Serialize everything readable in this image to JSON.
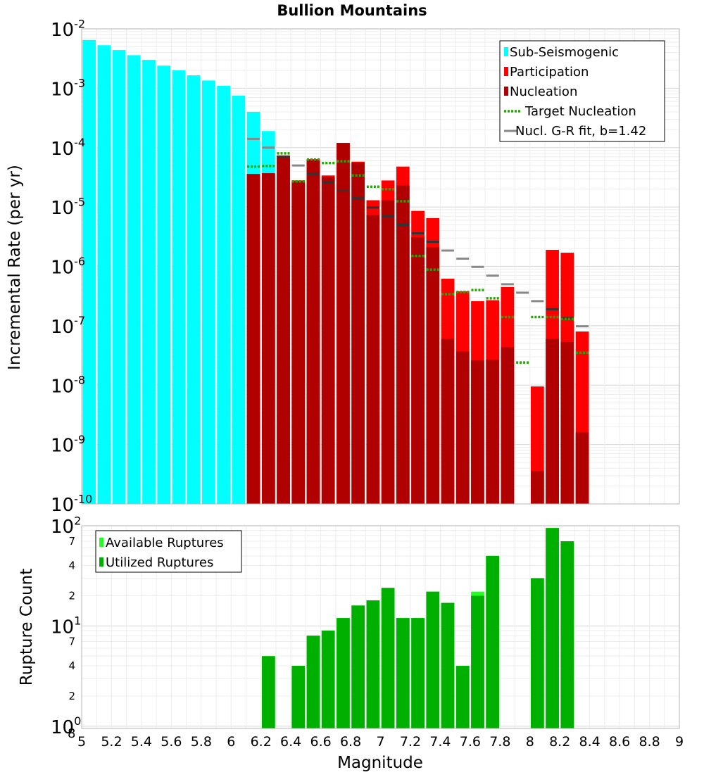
{
  "chart_data": [
    {
      "type": "bar",
      "title": "Bullion Mountains",
      "xlabel": "",
      "ylabel": "Incremental Rate (per yr)",
      "yscale": "log",
      "xlim": [
        5,
        9
      ],
      "ylim": [
        1e-10,
        0.01
      ],
      "y_tick_labels": [
        {
          "base": "10",
          "exp": "-10"
        },
        {
          "base": "10",
          "exp": "-9"
        },
        {
          "base": "10",
          "exp": "-8"
        },
        {
          "base": "10",
          "exp": "-7"
        },
        {
          "base": "10",
          "exp": "-6"
        },
        {
          "base": "10",
          "exp": "-5"
        },
        {
          "base": "10",
          "exp": "-4"
        },
        {
          "base": "10",
          "exp": "-3"
        },
        {
          "base": "10",
          "exp": "-2"
        }
      ],
      "legend": {
        "position": "top-right",
        "entries": [
          "Sub-Seismogenic",
          "Participation",
          "Nucleation",
          "Target Nucleation",
          "Nucl. G-R fit, b=1.42"
        ]
      },
      "colors": {
        "sub_seismogenic": "#00ffff",
        "participation": "#ff0000",
        "nucleation": "#b00000",
        "target": "#1faa00",
        "gr_fit": "#888888"
      },
      "series": [
        {
          "name": "Sub-Seismogenic",
          "x": [
            5.05,
            5.15,
            5.25,
            5.35,
            5.45,
            5.55,
            5.65,
            5.75,
            5.85,
            5.95,
            6.05,
            6.15,
            6.25
          ],
          "values": [
            0.0065,
            0.0053,
            0.0044,
            0.0036,
            0.003,
            0.0024,
            0.002,
            0.00165,
            0.00135,
            0.0011,
            0.00075,
            0.0004,
            0.00019
          ]
        },
        {
          "name": "Participation",
          "x": [
            6.15,
            6.25,
            6.35,
            6.45,
            6.55,
            6.65,
            6.75,
            6.85,
            6.95,
            7.05,
            7.15,
            7.25,
            7.35,
            7.45,
            7.55,
            7.65,
            7.75,
            7.85,
            8.05,
            8.15,
            8.25,
            8.35
          ],
          "values": [
            3.6e-05,
            3.7e-05,
            7.4e-05,
            2.8e-05,
            6.4e-05,
            3.4e-05,
            0.00012,
            5.8e-05,
            1.3e-05,
            2.8e-05,
            4.8e-05,
            8.6e-06,
            6.5e-06,
            6.2e-07,
            3.8e-07,
            2.6e-07,
            2.7e-07,
            4.5e-07,
            9.5e-09,
            1.9e-06,
            1.7e-06,
            8e-08
          ]
        },
        {
          "name": "Nucleation",
          "x": [
            6.15,
            6.25,
            6.35,
            6.45,
            6.55,
            6.65,
            6.75,
            6.85,
            6.95,
            7.05,
            7.15,
            7.25,
            7.35,
            7.45,
            7.55,
            7.65,
            7.75,
            7.85,
            8.05,
            8.15,
            8.25,
            8.35
          ],
          "values": [
            3.6e-05,
            3.7e-05,
            7.2e-05,
            2.7e-05,
            6.2e-05,
            3.2e-05,
            0.00012,
            5.6e-05,
            7.3e-06,
            1.3e-05,
            2.3e-05,
            3.1e-06,
            2.1e-06,
            6e-08,
            3.7e-08,
            2.6e-08,
            2.7e-08,
            4.4e-08,
            3.6e-10,
            6e-08,
            5.3e-08,
            1.6e-09
          ]
        },
        {
          "name": "Target Nucleation",
          "x": [
            6.15,
            6.25,
            6.35,
            6.45,
            6.55,
            6.65,
            6.75,
            6.85,
            6.95,
            7.05,
            7.15,
            7.25,
            7.35,
            7.45,
            7.55,
            7.65,
            7.75,
            7.85,
            7.95,
            8.05,
            8.15,
            8.25,
            8.35
          ],
          "values": [
            4.8e-05,
            4.9e-05,
            8e-05,
            2.7e-05,
            6.3e-05,
            5.5e-05,
            5.9e-05,
            3.4e-05,
            2.2e-05,
            2e-05,
            1.25e-05,
            1.5e-06,
            8.8e-07,
            3.4e-07,
            3.7e-07,
            4e-07,
            2.9e-07,
            1.4e-07,
            2.4e-08,
            1.4e-07,
            1.4e-07,
            1.3e-07,
            3.5e-08
          ]
        },
        {
          "name": "Nucl. G-R fit, b=1.42",
          "x": [
            6.15,
            6.25,
            6.35,
            6.45,
            6.55,
            6.65,
            6.75,
            6.85,
            6.95,
            7.05,
            7.15,
            7.25,
            7.35,
            7.45,
            7.55,
            7.65,
            7.75,
            7.85,
            7.95,
            8.05,
            8.15,
            8.25,
            8.35
          ],
          "values": [
            0.00014,
            0.0001,
            7e-05,
            5e-05,
            3.6e-05,
            2.6e-05,
            1.9e-05,
            1.4e-05,
            9.8e-06,
            7e-06,
            5e-06,
            3.6e-06,
            2.6e-06,
            1.85e-06,
            1.35e-06,
            9.8e-07,
            7e-07,
            5e-07,
            3.6e-07,
            2.6e-07,
            1.9e-07,
            1.35e-07,
            9.8e-08
          ]
        }
      ]
    },
    {
      "type": "bar",
      "title": "",
      "xlabel": "Magnitude",
      "ylabel": "Rupture Count",
      "yscale": "log",
      "xlim": [
        5,
        9
      ],
      "ylim": [
        0.95,
        100
      ],
      "x_tick_labels": [
        "5",
        "5.2",
        "5.4",
        "5.6",
        "5.8",
        "6",
        "6.2",
        "6.4",
        "6.6",
        "6.8",
        "7",
        "7.2",
        "7.4",
        "7.6",
        "7.8",
        "8",
        "8.2",
        "8.4",
        "8.6",
        "8.8",
        "9"
      ],
      "y_major_ticks": [
        {
          "label": "10",
          "exp": "0",
          "prefix": "8"
        },
        {
          "label": "10",
          "exp": "1"
        },
        {
          "label": "10",
          "exp": "2"
        }
      ],
      "y_minor_ticks": [
        {
          "value": 2,
          "label": "2"
        },
        {
          "value": 4,
          "label": "4"
        },
        {
          "value": 7,
          "label": "7"
        },
        {
          "value": 20,
          "label": "2"
        },
        {
          "value": 40,
          "label": "4"
        },
        {
          "value": 70,
          "label": "7"
        }
      ],
      "legend": {
        "position": "top-left",
        "entries": [
          "Available Ruptures",
          "Utilized Ruptures"
        ]
      },
      "colors": {
        "available": "#22ff22",
        "utilized": "#00b000"
      },
      "series": [
        {
          "name": "Available Ruptures",
          "x": [
            6.25,
            6.45,
            6.55,
            6.65,
            6.75,
            6.85,
            6.95,
            7.05,
            7.15,
            7.25,
            7.35,
            7.45,
            7.55,
            7.65,
            7.75,
            8.05,
            8.15,
            8.25
          ],
          "values": [
            5,
            4,
            8,
            9,
            12,
            16,
            18,
            24,
            12,
            12,
            22,
            17,
            4,
            22,
            50,
            30,
            95,
            70
          ]
        },
        {
          "name": "Utilized Ruptures",
          "x": [
            6.25,
            6.45,
            6.55,
            6.65,
            6.75,
            6.85,
            6.95,
            7.05,
            7.15,
            7.25,
            7.35,
            7.45,
            7.55,
            7.65,
            7.75,
            8.05,
            8.15,
            8.25
          ],
          "values": [
            5,
            4,
            8,
            9,
            12,
            16,
            18,
            24,
            12,
            12,
            22,
            17,
            4,
            20,
            50,
            30,
            95,
            70
          ]
        }
      ]
    }
  ]
}
